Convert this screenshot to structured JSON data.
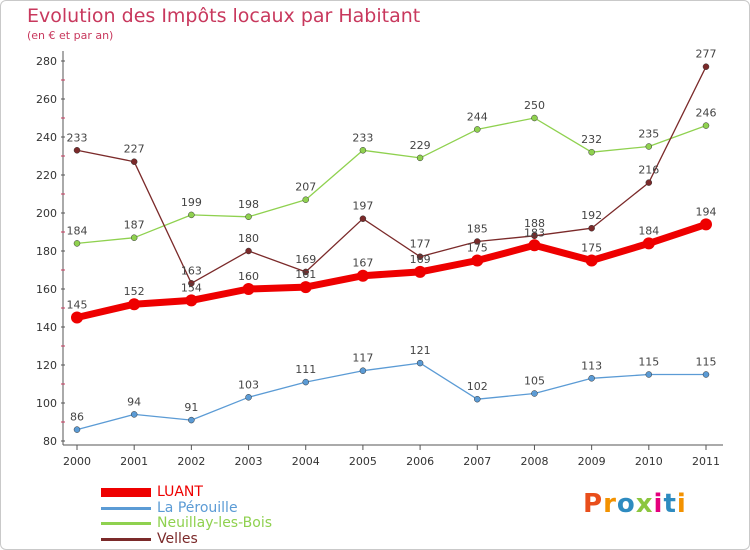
{
  "title": "Evolution des Impôts locaux par Habitant",
  "subtitle": "(en € et par an)",
  "logo": "Proxiti",
  "chart_data": {
    "type": "line",
    "title": "Evolution des Impôts locaux par Habitant",
    "subtitle": "(en € et par an)",
    "xlabel": "",
    "ylabel": "",
    "categories": [
      "2000",
      "2001",
      "2002",
      "2003",
      "2004",
      "2005",
      "2006",
      "2007",
      "2008",
      "2009",
      "2010",
      "2011"
    ],
    "ylim": [
      80,
      280
    ],
    "yticks": [
      "80",
      "100",
      "120",
      "140",
      "160",
      "180",
      "200",
      "220",
      "240",
      "260",
      "280"
    ],
    "grid": false,
    "legend_position": "bottom-left",
    "series": [
      {
        "name": "LUANT",
        "color": "#ee0000",
        "values": [
          145,
          152,
          154,
          160,
          161,
          167,
          169,
          175,
          183,
          175,
          184,
          194
        ],
        "labels": [
          "145",
          "152",
          "154",
          "160",
          "161",
          "167",
          "169",
          "175",
          "183",
          "175",
          "184",
          "194"
        ]
      },
      {
        "name": "La Pérouille",
        "color": "#5b9bd5",
        "values": [
          86,
          94,
          91,
          103,
          111,
          117,
          121,
          102,
          105,
          113,
          115,
          115
        ],
        "labels": [
          "86",
          "94",
          "91",
          "103",
          "111",
          "117",
          "121",
          "102",
          "105",
          "113",
          "115",
          "115"
        ]
      },
      {
        "name": "Neuillay-les-Bois",
        "color": "#8fd14f",
        "values": [
          184,
          187,
          199,
          198,
          207,
          233,
          229,
          244,
          250,
          232,
          235,
          246
        ],
        "labels": [
          "184",
          "187",
          "199",
          "198",
          "207",
          "233",
          "229",
          "244",
          "250",
          "232",
          "235",
          "246"
        ]
      },
      {
        "name": "Velles",
        "color": "#7b2a2a",
        "values": [
          233,
          227,
          163,
          180,
          169,
          197,
          177,
          185,
          188,
          192,
          216,
          277
        ],
        "labels": [
          "233",
          "227",
          "163",
          "180",
          "169",
          "197",
          "177",
          "185",
          "188",
          "192",
          "216",
          "277"
        ]
      }
    ]
  }
}
